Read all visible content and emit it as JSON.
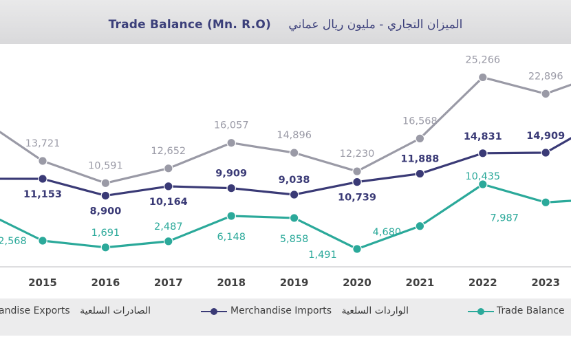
{
  "title": {
    "arabic": "الميزان التجاري - مليون ريال عماني",
    "english": "Trade Balance (Mn. R.O)"
  },
  "colors": {
    "exports": "#9a9aa6",
    "imports": "#3a3a76",
    "balance": "#2ba99a",
    "grid_band": "#ececed"
  },
  "legend": [
    {
      "key": "exports",
      "english": "andise Exports",
      "arabic": "الصادرات السلعية"
    },
    {
      "key": "imports",
      "english": "Merchandise Imports",
      "arabic": "الواردات السلعية"
    },
    {
      "key": "balance",
      "english": "Trade Balance",
      "arabic": ""
    }
  ],
  "chart_data": {
    "type": "line",
    "x": [
      "2015",
      "2016",
      "2017",
      "2018",
      "2019",
      "2020",
      "2021",
      "2022",
      "2023"
    ],
    "series": [
      {
        "name": "Merchandise Exports",
        "values": [
          13721,
          10591,
          12652,
          16057,
          14896,
          12230,
          16568,
          25266,
          22896
        ],
        "labels": [
          "13,721",
          "10,591",
          "12,652",
          "16,057",
          "14,896",
          "12,230",
          "16,568",
          "25,266",
          "22,896"
        ]
      },
      {
        "name": "Merchandise Imports",
        "values": [
          11153,
          8900,
          10164,
          9909,
          9038,
          10739,
          11888,
          14831,
          14909
        ],
        "labels": [
          "11,153",
          "8,900",
          "10,164",
          "9,909",
          "9,038",
          "10,739",
          "11,888",
          "14,831",
          "14,909"
        ]
      },
      {
        "name": "Trade Balance",
        "values": [
          2568,
          1691,
          2487,
          6148,
          5858,
          1491,
          4680,
          10435,
          7987
        ],
        "labels": [
          "2,568",
          "1,691",
          "2,487",
          "6,148",
          "5,858",
          "1,491",
          "4,680",
          "10,435",
          "7,987"
        ]
      }
    ],
    "title": "Trade Balance (Mn. R.O)",
    "grid": false,
    "legend_position": "bottom"
  }
}
